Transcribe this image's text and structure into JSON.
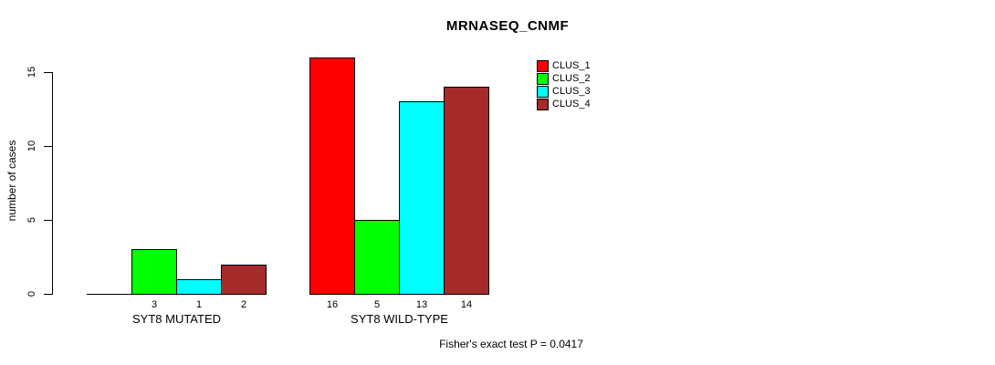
{
  "chart_data": {
    "type": "bar",
    "title": "MRNASEQ_CNMF",
    "xlabel": "",
    "ylabel": "number of cases",
    "footer": "Fisher's exact test P = 0.0417",
    "categories": [
      "SYT8 MUTATED",
      "SYT8 WILD-TYPE"
    ],
    "series": [
      {
        "name": "CLUS_1",
        "color": "#FF0000",
        "values": [
          0,
          16
        ]
      },
      {
        "name": "CLUS_2",
        "color": "#00FF00",
        "values": [
          3,
          5
        ]
      },
      {
        "name": "CLUS_3",
        "color": "#00FFFF",
        "values": [
          1,
          13
        ]
      },
      {
        "name": "CLUS_4",
        "color": "#A52A2A",
        "values": [
          2,
          14
        ]
      }
    ],
    "yticks": [
      0,
      5,
      10,
      15
    ],
    "ylim": [
      0,
      16
    ],
    "grid": false,
    "legend_position": "top-right",
    "bar_value_labels_shown": true,
    "zero_value_labels_hidden": true,
    "axis_color": "#000000",
    "background_color": "#FFFFFF"
  }
}
